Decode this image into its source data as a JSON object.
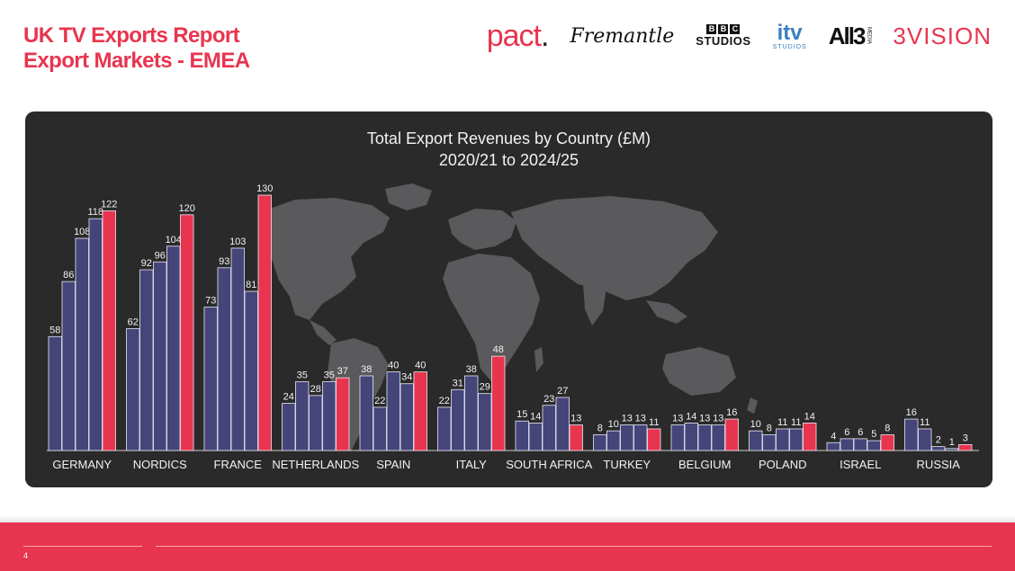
{
  "header": {
    "title_line1": "UK TV Exports Report",
    "title_line2": "Export Markets - EMEA"
  },
  "logos": {
    "pact": "pact",
    "fremantle": "Fremantle",
    "bbc_letters": [
      "B",
      "B",
      "C"
    ],
    "bbc_studios": "STUDIOS",
    "itv": "itv",
    "itv_studios": "STUDIOS",
    "all3": "All3",
    "all3_media": "MEDIA",
    "threevision": "3VISION"
  },
  "colors": {
    "brand": "#e8354f",
    "panel": "#2b2a2b",
    "bar_past": "#45457a",
    "bar_latest": "#e8354f",
    "map": "#5a595b"
  },
  "chart_data": {
    "type": "bar",
    "title": "Total Export Revenues by Country (£M)",
    "subtitle": "2020/21 to 2024/25",
    "categories": [
      "GERMANY",
      "NORDICS",
      "FRANCE",
      "NETHERLANDS",
      "SPAIN",
      "ITALY",
      "SOUTH AFRICA",
      "TURKEY",
      "BELGIUM",
      "POLAND",
      "ISRAEL",
      "RUSSIA"
    ],
    "groups": [
      [
        58,
        86,
        108,
        118,
        122
      ],
      [
        62,
        92,
        96,
        104,
        120
      ],
      [
        73,
        93,
        103,
        81,
        130
      ],
      [
        24,
        35,
        28,
        35,
        37
      ],
      [
        38,
        22,
        40,
        34,
        40
      ],
      [
        22,
        31,
        38,
        29,
        48
      ],
      [
        15,
        14,
        23,
        27,
        13
      ],
      [
        8,
        10,
        13,
        13,
        11
      ],
      [
        13,
        14,
        13,
        13,
        16
      ],
      [
        10,
        8,
        11,
        11,
        14
      ],
      [
        4,
        6,
        6,
        5,
        8
      ],
      [
        16,
        11,
        2,
        1,
        3
      ]
    ],
    "ylim": [
      0,
      130
    ],
    "grid": false,
    "legend": "none"
  },
  "footer": {
    "page_number": "4"
  }
}
